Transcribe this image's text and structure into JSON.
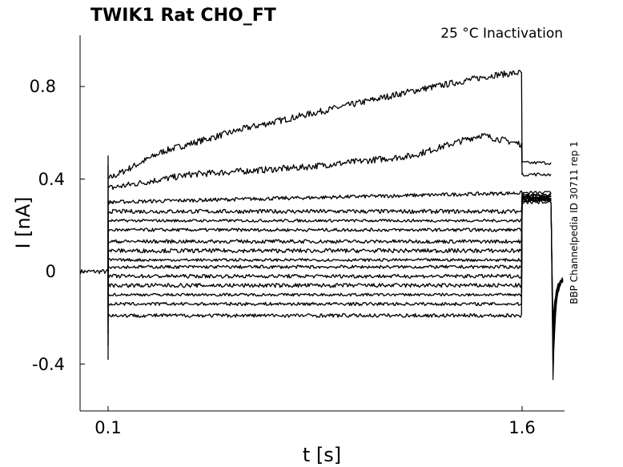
{
  "chart_data": {
    "type": "line",
    "title": "TWIK1  Rat  CHO_FT",
    "condition": "25 °C  Inactivation",
    "side_label": "BBP Channelpedia ID 30711 rep 1",
    "xlabel": "t [s]",
    "ylabel": "I [nA]",
    "x_ticks": [
      {
        "value": 0.1,
        "label": "0.1"
      },
      {
        "value": 1.6,
        "label": "1.6"
      }
    ],
    "y_ticks": [
      {
        "value": 0.8,
        "label": "0.8"
      },
      {
        "value": 0.4,
        "label": "0.4"
      },
      {
        "value": 0,
        "label": "0"
      },
      {
        "value": -0.4,
        "label": -0.4
      }
    ],
    "xlim": [
      0.0,
      1.75
    ],
    "ylim": [
      -0.6,
      1.02
    ],
    "line_color": "#000000",
    "pre_step": {
      "x": [
        0.0,
        0.1
      ],
      "y": [
        0.0,
        0.0
      ]
    },
    "series": [
      {
        "x": [
          0.1,
          0.3,
          0.6,
          0.9,
          1.2,
          1.5,
          1.6
        ],
        "y": [
          0.4,
          0.52,
          0.62,
          0.7,
          0.78,
          0.85,
          0.86
        ],
        "tail": 0.47
      },
      {
        "x": [
          0.1,
          0.4,
          0.8,
          1.2,
          1.45,
          1.6
        ],
        "y": [
          0.36,
          0.42,
          0.45,
          0.5,
          0.59,
          0.55
        ],
        "tail": 0.42
      },
      {
        "x": [
          0.1,
          1.6
        ],
        "y": [
          0.3,
          0.34
        ],
        "tail": 0.34
      },
      {
        "x": [
          0.1,
          1.6
        ],
        "y": [
          0.26,
          0.26
        ],
        "tail": 0.33
      },
      {
        "x": [
          0.1,
          1.6
        ],
        "y": [
          0.22,
          0.22
        ],
        "tail": 0.32
      },
      {
        "x": [
          0.1,
          1.6
        ],
        "y": [
          0.18,
          0.18
        ],
        "tail": 0.33
      },
      {
        "x": [
          0.1,
          1.6
        ],
        "y": [
          0.13,
          0.13
        ],
        "tail": 0.33
      },
      {
        "x": [
          0.1,
          1.6
        ],
        "y": [
          0.09,
          0.09
        ],
        "tail": 0.32
      },
      {
        "x": [
          0.1,
          1.6
        ],
        "y": [
          0.05,
          0.05
        ],
        "tail": 0.32
      },
      {
        "x": [
          0.1,
          1.6
        ],
        "y": [
          0.02,
          0.02
        ],
        "tail": 0.32
      },
      {
        "x": [
          0.1,
          1.6
        ],
        "y": [
          -0.02,
          -0.02
        ],
        "tail": 0.31
      },
      {
        "x": [
          0.1,
          1.6
        ],
        "y": [
          -0.06,
          -0.06
        ],
        "tail": 0.31
      },
      {
        "x": [
          0.1,
          1.6
        ],
        "y": [
          -0.1,
          -0.1
        ],
        "tail": 0.31
      },
      {
        "x": [
          0.1,
          1.6
        ],
        "y": [
          -0.14,
          -0.14
        ],
        "tail": 0.31
      },
      {
        "x": [
          0.1,
          1.6
        ],
        "y": [
          -0.19,
          -0.19
        ],
        "tail": 0.3
      }
    ],
    "recovery": {
      "x": [
        1.72,
        1.75
      ],
      "y_min": -0.46,
      "y_end": -0.03
    },
    "grid": false,
    "legend": "none"
  }
}
